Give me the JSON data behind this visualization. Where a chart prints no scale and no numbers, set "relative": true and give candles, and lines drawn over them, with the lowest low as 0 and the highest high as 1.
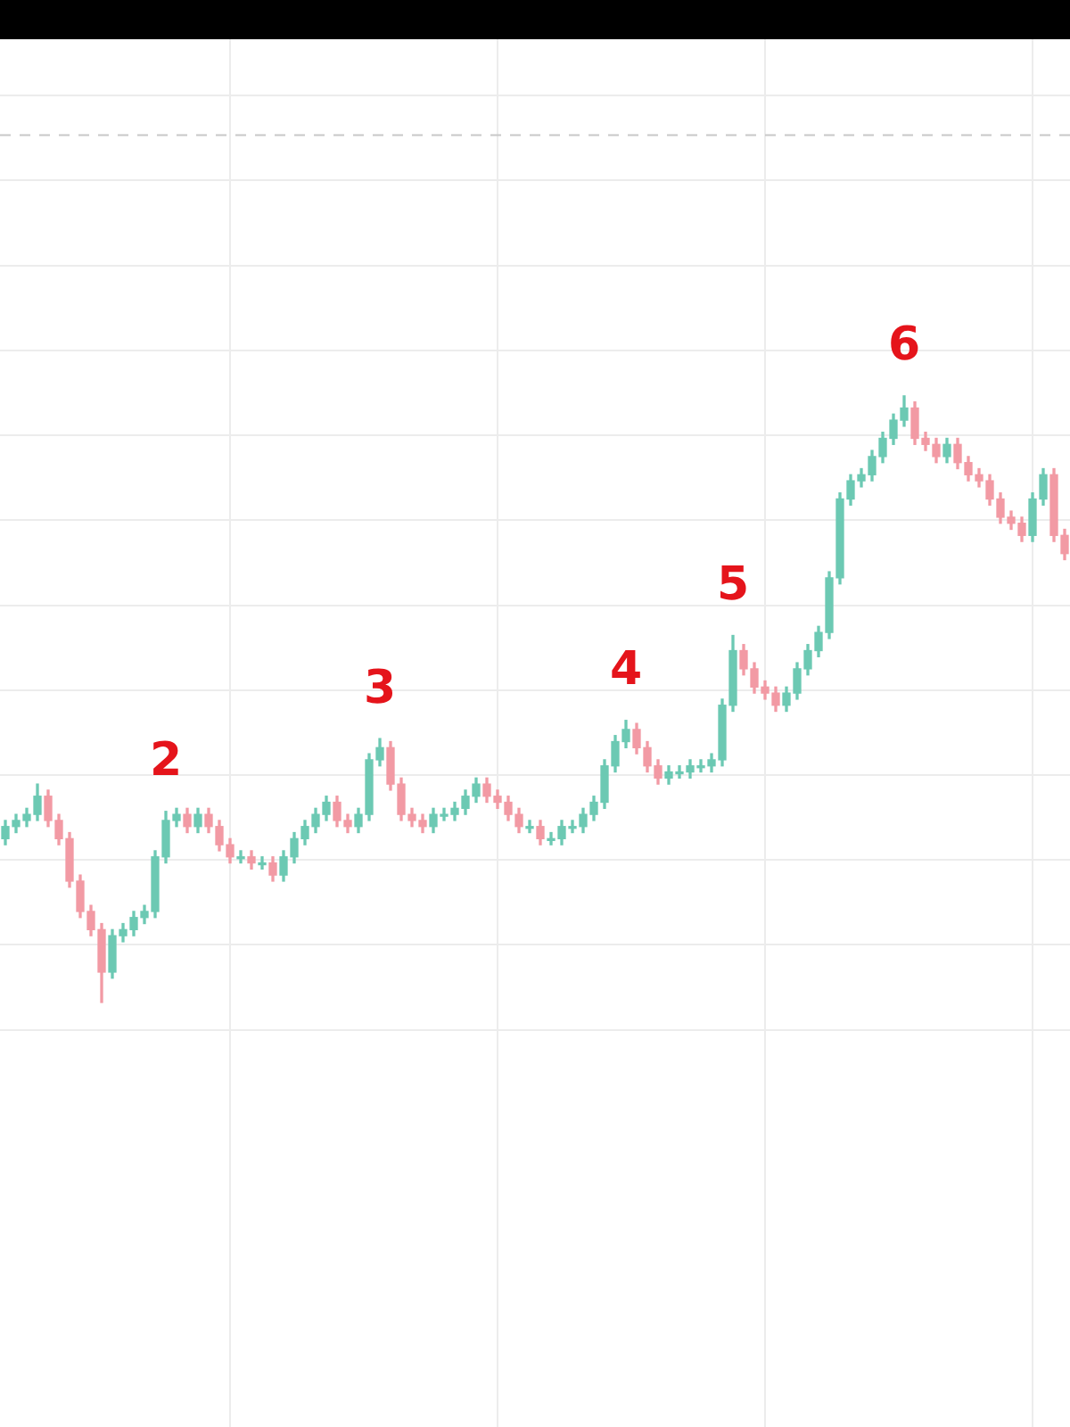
{
  "chart_data": {
    "type": "candlestick",
    "relative": true,
    "grid": true,
    "legend": false,
    "categories": [
      null,
      null,
      null,
      null,
      null,
      null,
      null,
      null,
      null,
      null,
      null,
      null,
      null,
      null,
      null,
      null,
      null,
      null,
      null,
      null,
      null,
      null,
      null,
      null,
      null,
      null,
      null,
      null,
      null,
      null,
      null,
      null,
      null,
      null,
      null,
      null,
      null,
      null,
      null,
      null,
      null,
      null,
      null,
      null,
      null,
      null,
      null,
      null,
      null,
      null,
      null,
      null,
      null,
      null,
      null,
      null,
      null,
      null,
      null,
      null,
      null,
      null,
      null,
      null,
      null,
      null,
      null,
      null,
      null,
      null,
      null,
      null,
      null,
      null,
      null,
      null,
      null,
      null,
      null,
      null,
      null,
      null,
      null,
      null,
      null,
      null,
      null,
      null,
      null,
      null,
      null,
      null,
      null,
      null,
      null,
      null,
      null,
      null,
      null,
      null
    ],
    "ohlc": [
      [
        0.27,
        0.3,
        0.26,
        0.29
      ],
      [
        0.29,
        0.31,
        0.28,
        0.3
      ],
      [
        0.3,
        0.32,
        0.29,
        0.31
      ],
      [
        0.31,
        0.36,
        0.3,
        0.34
      ],
      [
        0.34,
        0.35,
        0.29,
        0.3
      ],
      [
        0.3,
        0.31,
        0.26,
        0.27
      ],
      [
        0.27,
        0.28,
        0.19,
        0.2
      ],
      [
        0.2,
        0.21,
        0.14,
        0.15
      ],
      [
        0.15,
        0.16,
        0.11,
        0.12
      ],
      [
        0.12,
        0.13,
        0.0,
        0.05
      ],
      [
        0.05,
        0.12,
        0.04,
        0.11
      ],
      [
        0.11,
        0.13,
        0.1,
        0.12
      ],
      [
        0.12,
        0.15,
        0.11,
        0.14
      ],
      [
        0.14,
        0.16,
        0.13,
        0.15
      ],
      [
        0.15,
        0.25,
        0.14,
        0.24
      ],
      [
        0.24,
        0.315,
        0.23,
        0.3
      ],
      [
        0.3,
        0.32,
        0.29,
        0.31
      ],
      [
        0.31,
        0.32,
        0.28,
        0.29
      ],
      [
        0.29,
        0.32,
        0.28,
        0.31
      ],
      [
        0.31,
        0.32,
        0.28,
        0.29
      ],
      [
        0.29,
        0.3,
        0.25,
        0.26
      ],
      [
        0.26,
        0.27,
        0.23,
        0.24
      ],
      [
        0.24,
        0.25,
        0.23,
        0.24
      ],
      [
        0.24,
        0.25,
        0.22,
        0.23
      ],
      [
        0.23,
        0.24,
        0.22,
        0.23
      ],
      [
        0.23,
        0.24,
        0.2,
        0.21
      ],
      [
        0.21,
        0.25,
        0.2,
        0.24
      ],
      [
        0.24,
        0.28,
        0.23,
        0.27
      ],
      [
        0.27,
        0.3,
        0.26,
        0.29
      ],
      [
        0.29,
        0.32,
        0.28,
        0.31
      ],
      [
        0.31,
        0.34,
        0.3,
        0.33
      ],
      [
        0.33,
        0.34,
        0.29,
        0.3
      ],
      [
        0.3,
        0.31,
        0.28,
        0.29
      ],
      [
        0.29,
        0.32,
        0.28,
        0.31
      ],
      [
        0.31,
        0.41,
        0.3,
        0.4
      ],
      [
        0.4,
        0.435,
        0.39,
        0.42
      ],
      [
        0.42,
        0.43,
        0.35,
        0.36
      ],
      [
        0.36,
        0.37,
        0.3,
        0.31
      ],
      [
        0.31,
        0.32,
        0.29,
        0.3
      ],
      [
        0.3,
        0.31,
        0.28,
        0.29
      ],
      [
        0.29,
        0.32,
        0.28,
        0.31
      ],
      [
        0.31,
        0.32,
        0.3,
        0.31
      ],
      [
        0.31,
        0.33,
        0.3,
        0.32
      ],
      [
        0.32,
        0.35,
        0.31,
        0.34
      ],
      [
        0.34,
        0.37,
        0.33,
        0.36
      ],
      [
        0.36,
        0.37,
        0.33,
        0.34
      ],
      [
        0.34,
        0.35,
        0.32,
        0.33
      ],
      [
        0.33,
        0.34,
        0.3,
        0.31
      ],
      [
        0.31,
        0.32,
        0.28,
        0.29
      ],
      [
        0.29,
        0.3,
        0.28,
        0.29
      ],
      [
        0.29,
        0.3,
        0.26,
        0.27
      ],
      [
        0.27,
        0.28,
        0.26,
        0.27
      ],
      [
        0.27,
        0.3,
        0.26,
        0.29
      ],
      [
        0.29,
        0.3,
        0.28,
        0.29
      ],
      [
        0.29,
        0.32,
        0.28,
        0.31
      ],
      [
        0.31,
        0.34,
        0.3,
        0.33
      ],
      [
        0.33,
        0.4,
        0.32,
        0.39
      ],
      [
        0.39,
        0.44,
        0.38,
        0.43
      ],
      [
        0.43,
        0.465,
        0.42,
        0.45
      ],
      [
        0.45,
        0.46,
        0.41,
        0.42
      ],
      [
        0.42,
        0.43,
        0.38,
        0.39
      ],
      [
        0.39,
        0.4,
        0.36,
        0.37
      ],
      [
        0.37,
        0.39,
        0.36,
        0.38
      ],
      [
        0.38,
        0.39,
        0.37,
        0.38
      ],
      [
        0.38,
        0.4,
        0.37,
        0.39
      ],
      [
        0.39,
        0.4,
        0.38,
        0.39
      ],
      [
        0.39,
        0.41,
        0.38,
        0.4
      ],
      [
        0.4,
        0.5,
        0.39,
        0.49
      ],
      [
        0.49,
        0.605,
        0.48,
        0.58
      ],
      [
        0.58,
        0.59,
        0.54,
        0.55
      ],
      [
        0.55,
        0.56,
        0.51,
        0.52
      ],
      [
        0.52,
        0.53,
        0.5,
        0.51
      ],
      [
        0.51,
        0.52,
        0.48,
        0.49
      ],
      [
        0.49,
        0.52,
        0.48,
        0.51
      ],
      [
        0.51,
        0.56,
        0.5,
        0.55
      ],
      [
        0.55,
        0.59,
        0.54,
        0.58
      ],
      [
        0.58,
        0.62,
        0.57,
        0.61
      ],
      [
        0.61,
        0.71,
        0.6,
        0.7
      ],
      [
        0.7,
        0.84,
        0.69,
        0.83
      ],
      [
        0.83,
        0.87,
        0.82,
        0.86
      ],
      [
        0.86,
        0.88,
        0.85,
        0.87
      ],
      [
        0.87,
        0.91,
        0.86,
        0.9
      ],
      [
        0.9,
        0.94,
        0.89,
        0.93
      ],
      [
        0.93,
        0.97,
        0.92,
        0.96
      ],
      [
        0.96,
        1.0,
        0.95,
        0.98
      ],
      [
        0.98,
        0.99,
        0.92,
        0.93
      ],
      [
        0.93,
        0.94,
        0.91,
        0.92
      ],
      [
        0.92,
        0.93,
        0.89,
        0.9
      ],
      [
        0.9,
        0.93,
        0.89,
        0.92
      ],
      [
        0.92,
        0.93,
        0.88,
        0.89
      ],
      [
        0.89,
        0.9,
        0.86,
        0.87
      ],
      [
        0.87,
        0.88,
        0.85,
        0.86
      ],
      [
        0.86,
        0.87,
        0.82,
        0.83
      ],
      [
        0.83,
        0.84,
        0.79,
        0.8
      ],
      [
        0.8,
        0.81,
        0.78,
        0.79
      ],
      [
        0.79,
        0.8,
        0.76,
        0.77
      ],
      [
        0.77,
        0.84,
        0.76,
        0.83
      ],
      [
        0.83,
        0.88,
        0.82,
        0.87
      ],
      [
        0.87,
        0.88,
        0.76,
        0.77
      ],
      [
        0.77,
        0.78,
        0.73,
        0.74
      ]
    ],
    "ref_lines": [
      {
        "axis": "y",
        "value": 1.43,
        "color": "#c8c8c8",
        "line_style": "dashed"
      }
    ],
    "annotations": [
      {
        "text": "2",
        "y": 0.315
      },
      {
        "text": "3",
        "y": 0.435
      },
      {
        "text": "4",
        "y": 0.465
      },
      {
        "text": "5",
        "y": 0.605
      },
      {
        "text": "6",
        "y": 1.0
      }
    ]
  }
}
